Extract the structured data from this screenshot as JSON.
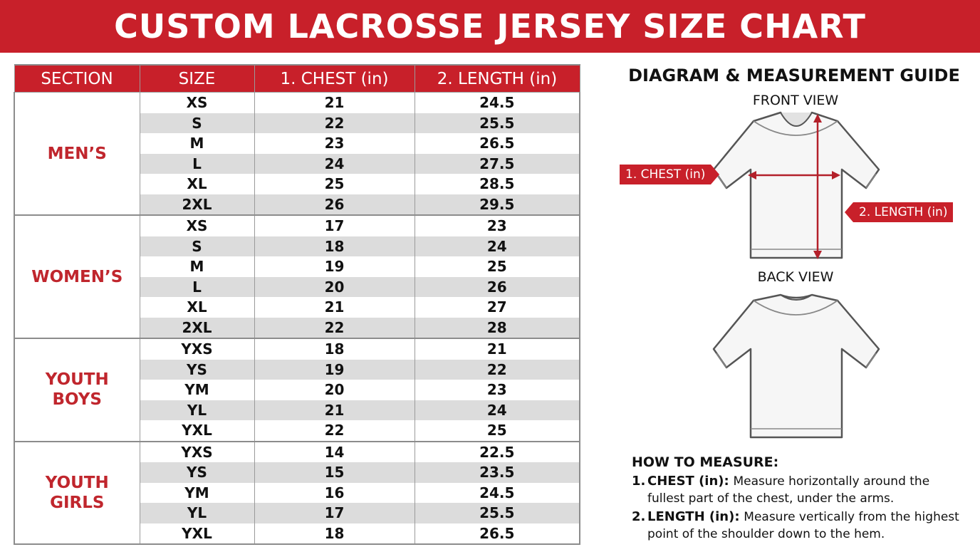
{
  "title": "CUSTOM LACROSSE JERSEY SIZE CHART",
  "chart_data": {
    "type": "table",
    "columns": [
      "SECTION",
      "SIZE",
      "1. CHEST (in)",
      "2. LENGTH (in)"
    ],
    "sections": [
      {
        "name": "MEN’S",
        "rows": [
          {
            "size": "XS",
            "chest": 21,
            "length": 24.5
          },
          {
            "size": "S",
            "chest": 22,
            "length": 25.5
          },
          {
            "size": "M",
            "chest": 23,
            "length": 26.5
          },
          {
            "size": "L",
            "chest": 24,
            "length": 27.5
          },
          {
            "size": "XL",
            "chest": 25,
            "length": 28.5
          },
          {
            "size": "2XL",
            "chest": 26,
            "length": 29.5
          }
        ]
      },
      {
        "name": "WOMEN’S",
        "rows": [
          {
            "size": "XS",
            "chest": 17,
            "length": 23
          },
          {
            "size": "S",
            "chest": 18,
            "length": 24
          },
          {
            "size": "M",
            "chest": 19,
            "length": 25
          },
          {
            "size": "L",
            "chest": 20,
            "length": 26
          },
          {
            "size": "XL",
            "chest": 21,
            "length": 27
          },
          {
            "size": "2XL",
            "chest": 22,
            "length": 28
          }
        ]
      },
      {
        "name": "YOUTH BOYS",
        "rows": [
          {
            "size": "YXS",
            "chest": 18,
            "length": 21
          },
          {
            "size": "YS",
            "chest": 19,
            "length": 22
          },
          {
            "size": "YM",
            "chest": 20,
            "length": 23
          },
          {
            "size": "YL",
            "chest": 21,
            "length": 24
          },
          {
            "size": "YXL",
            "chest": 22,
            "length": 25
          }
        ]
      },
      {
        "name": "YOUTH GIRLS",
        "rows": [
          {
            "size": "YXS",
            "chest": 14,
            "length": 22.5
          },
          {
            "size": "YS",
            "chest": 15,
            "length": 23.5
          },
          {
            "size": "YM",
            "chest": 16,
            "length": 24.5
          },
          {
            "size": "YL",
            "chest": 17,
            "length": 25.5
          },
          {
            "size": "YXL",
            "chest": 18,
            "length": 26.5
          }
        ]
      }
    ]
  },
  "guide": {
    "title": "DIAGRAM & MEASUREMENT GUIDE",
    "front_label": "FRONT VIEW",
    "back_label": "BACK VIEW",
    "chest_callout": "1. CHEST (in)",
    "length_callout": "2. LENGTH (in)",
    "front_icon": "jersey-front-icon",
    "back_icon": "jersey-back-icon"
  },
  "how_to": {
    "title": "HOW TO MEASURE:",
    "items": [
      {
        "num": "1.",
        "term": "CHEST (in):",
        "desc": "Measure horizontally around the fullest part of the chest, under the arms."
      },
      {
        "num": "2.",
        "term": "LENGTH (in):",
        "desc": "Measure vertically from the highest point of the shoulder down to the hem."
      }
    ]
  },
  "colors": {
    "accent": "#c8202a",
    "section_text": "#c0262d",
    "row_alt": "#dcdcdc",
    "border": "#9a9a9a"
  }
}
